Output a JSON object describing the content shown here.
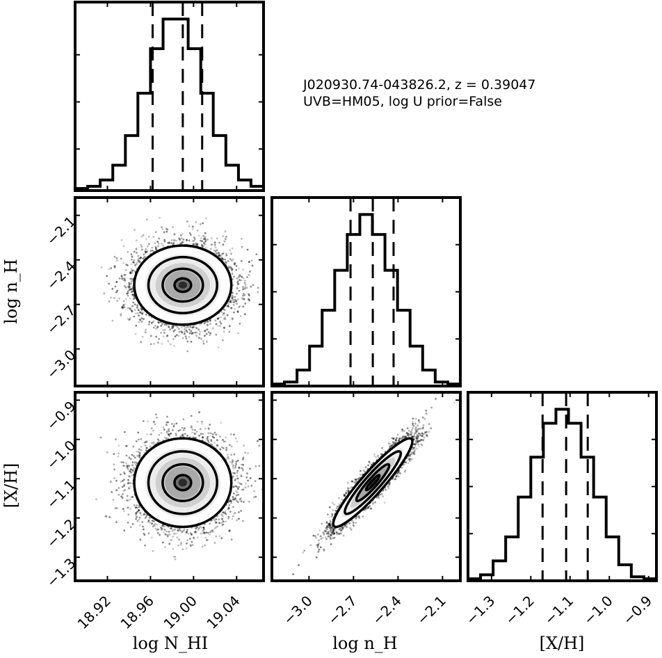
{
  "annotation": {
    "line1": "J020930.74-043826.2, z = 0.39047",
    "line2": "UVB=HM05, log U prior=False"
  },
  "axis_labels": {
    "x_col0": "log N_HI",
    "x_col1": "log n_H",
    "x_col2": "[X/H]",
    "y_row1": "log n_H",
    "y_row2": "[X/H]"
  },
  "chart_data": {
    "type": "corner",
    "parameters": [
      {
        "name": "log N_HI",
        "range": [
          18.89,
          19.065
        ],
        "ticks": [
          "18.92",
          "18.96",
          "19.00",
          "19.04"
        ],
        "tick_values": [
          18.92,
          18.96,
          19.0,
          19.04
        ],
        "quantiles": [
          18.962,
          18.99,
          19.008
        ],
        "histogram": {
          "edges": [
            18.89,
            18.9017,
            18.9133,
            18.925,
            18.9367,
            18.9483,
            18.96,
            18.9717,
            18.9833,
            18.995,
            19.0067,
            19.0183,
            19.03,
            19.0417,
            19.0533,
            19.065
          ],
          "counts": [
            1,
            2,
            5,
            12,
            26,
            46,
            67,
            81,
            81,
            67,
            46,
            26,
            12,
            5,
            2
          ]
        }
      },
      {
        "name": "log n_H",
        "range": [
          -3.25,
          -1.98
        ],
        "ticks": [
          "-3.0",
          "-2.7",
          "-2.4",
          "-2.1"
        ],
        "tick_values": [
          -3.0,
          -2.7,
          -2.4,
          -2.1
        ],
        "quantiles": [
          -2.72,
          -2.57,
          -2.43
        ],
        "histogram": {
          "edges": [
            -3.25,
            -3.1653,
            -3.0807,
            -2.996,
            -2.9113,
            -2.8267,
            -2.742,
            -2.6573,
            -2.5727,
            -2.488,
            -2.4033,
            -2.3187,
            -2.234,
            -2.1493,
            -2.0647,
            -1.98
          ],
          "counts": [
            1,
            2,
            8,
            20,
            38,
            58,
            76,
            86,
            76,
            58,
            38,
            20,
            8,
            2,
            1
          ]
        }
      },
      {
        "name": "[X/H]",
        "range": [
          -1.36,
          -0.88
        ],
        "ticks": [
          "-1.3",
          "-1.2",
          "-1.1",
          "-1.0",
          "-0.9"
        ],
        "tick_values": [
          -1.3,
          -1.2,
          -1.1,
          -1.0,
          -0.9
        ],
        "quantiles": [
          -1.17,
          -1.11,
          -1.055
        ],
        "histogram": {
          "edges": [
            -1.36,
            -1.328,
            -1.296,
            -1.264,
            -1.232,
            -1.2,
            -1.168,
            -1.136,
            -1.104,
            -1.072,
            -1.04,
            -1.008,
            -0.976,
            -0.944,
            -0.912,
            -0.88
          ],
          "counts": [
            1,
            3,
            10,
            22,
            42,
            62,
            79,
            86,
            79,
            62,
            42,
            22,
            8,
            2,
            1
          ]
        }
      }
    ],
    "pairs": [
      {
        "x_param": 0,
        "y_param": 1,
        "center": [
          18.99,
          -2.57
        ],
        "spread": [
          0.022,
          0.13
        ],
        "correlation": 0.0
      },
      {
        "x_param": 0,
        "y_param": 2,
        "center": [
          18.99,
          -1.11
        ],
        "spread": [
          0.022,
          0.055
        ],
        "correlation": 0.0
      },
      {
        "x_param": 1,
        "y_param": 2,
        "center": [
          -2.57,
          -1.11
        ],
        "spread": [
          0.13,
          0.055
        ],
        "correlation": 0.93
      }
    ]
  }
}
